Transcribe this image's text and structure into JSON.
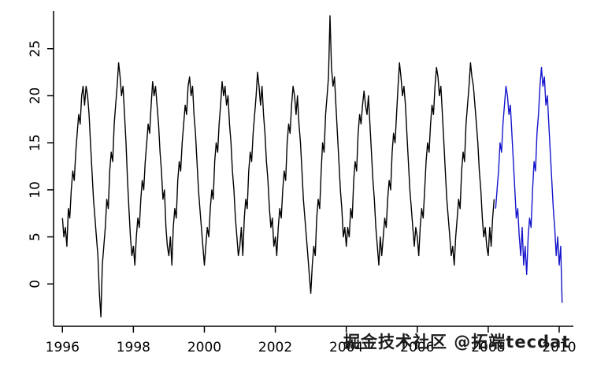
{
  "watermark": {
    "text": "掘金技术社区 @拓端tecdat"
  },
  "chart_data": {
    "type": "line",
    "title": "",
    "xlabel": "",
    "ylabel": "",
    "grid": false,
    "legend": "none",
    "xlim": [
      1995.75,
      2010.4
    ],
    "ylim": [
      -4.5,
      29
    ],
    "x_ticks": [
      1996,
      1998,
      2000,
      2002,
      2004,
      2006,
      2008,
      2010
    ],
    "y_ticks": [
      0,
      5,
      10,
      15,
      20,
      25
    ],
    "colors": {
      "observed": "#000000",
      "forecast": "#1414cc",
      "axis": "#000000"
    },
    "series": [
      {
        "name": "observed",
        "color_key": "observed",
        "x_start": 1996.0,
        "x_step": 0.0416667,
        "values": [
          7,
          5,
          6,
          4,
          8,
          7,
          10,
          12,
          11,
          14,
          16,
          18,
          17,
          20,
          21,
          19,
          21,
          20,
          18,
          15,
          12,
          9,
          7,
          5,
          3,
          -1,
          -3.5,
          2,
          4,
          6,
          9,
          8,
          12,
          14,
          13,
          17,
          19,
          21,
          23.5,
          22,
          20,
          21,
          18,
          15,
          11,
          8,
          5,
          3,
          4,
          2,
          5,
          7,
          6,
          9,
          11,
          10,
          13,
          15,
          17,
          16,
          19,
          21.5,
          20,
          21,
          19,
          17,
          14,
          12,
          9,
          10,
          6,
          4,
          3,
          5,
          2,
          6,
          8,
          7,
          11,
          13,
          12,
          15,
          17,
          19,
          18,
          21,
          22,
          20,
          21,
          18,
          16,
          13,
          10,
          8,
          6,
          4,
          2,
          4,
          6,
          5,
          8,
          10,
          9,
          13,
          15,
          14,
          17,
          19,
          21.5,
          20,
          21,
          19,
          20,
          17,
          15,
          12,
          10,
          7,
          5,
          3,
          4,
          6,
          3,
          7,
          9,
          8,
          12,
          14,
          13,
          16,
          18,
          20,
          22.5,
          21,
          19,
          21,
          18,
          16,
          13,
          11,
          8,
          6,
          7,
          4,
          5,
          3,
          6,
          8,
          7,
          10,
          12,
          11,
          15,
          17,
          16,
          19,
          21,
          20,
          18,
          20,
          17,
          15,
          12,
          9,
          7,
          5,
          3,
          1,
          -1,
          2,
          4,
          3,
          7,
          9,
          8,
          12,
          15,
          14,
          18,
          20,
          22,
          28.5,
          23,
          21,
          22,
          19,
          16,
          13,
          10,
          8,
          5,
          6,
          4,
          6,
          5,
          8,
          7,
          11,
          13,
          12,
          16,
          18,
          17,
          19,
          20.5,
          19,
          18,
          20,
          17,
          14,
          11,
          9,
          6,
          4,
          2,
          5,
          3,
          5,
          7,
          6,
          9,
          11,
          10,
          14,
          16,
          15,
          18,
          21,
          23.5,
          22,
          20,
          21,
          19,
          16,
          13,
          10,
          8,
          6,
          4,
          6,
          5,
          3,
          6,
          8,
          7,
          10,
          13,
          15,
          14,
          17,
          19,
          18,
          21,
          23,
          22,
          20,
          21,
          18,
          15,
          12,
          9,
          7,
          5,
          3,
          4,
          2,
          5,
          7,
          9,
          8,
          12,
          14,
          13,
          17,
          19,
          21,
          23.5,
          22,
          21,
          19,
          17,
          15,
          12,
          10,
          7,
          5,
          6,
          4,
          3,
          6,
          4,
          7,
          9
        ]
      },
      {
        "name": "forecast",
        "color_key": "forecast",
        "x_start": 2008.2083,
        "x_step": 0.0416667,
        "values": [
          8,
          10,
          12,
          15,
          14,
          17,
          19,
          21,
          20,
          18,
          19,
          16,
          13,
          10,
          7,
          8,
          5,
          3,
          6,
          2,
          4,
          1,
          5,
          7,
          6,
          10,
          13,
          12,
          16,
          18,
          21,
          23,
          21,
          22,
          19,
          20,
          17,
          14,
          11,
          8,
          6,
          3,
          5,
          2,
          4,
          -2
        ]
      }
    ]
  }
}
